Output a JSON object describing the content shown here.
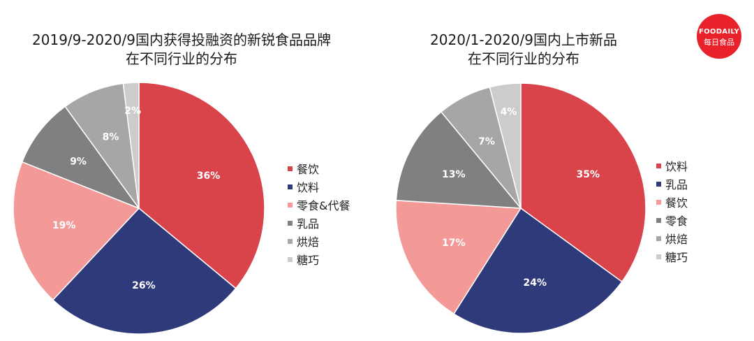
{
  "logo": {
    "brand": "FOODAILY",
    "sub": "每日食品"
  },
  "chart_data": [
    {
      "type": "pie",
      "title_lines": [
        "2019/9-2020/9国内获得投融资的新锐食品品牌",
        "在不同行业的分布"
      ],
      "legend_position": "right",
      "slices": [
        {
          "label": "餐饮",
          "value": 36,
          "display": "36%",
          "color": "#d9434a"
        },
        {
          "label": "饮料",
          "value": 26,
          "display": "26%",
          "color": "#2e3a7a"
        },
        {
          "label": "零食&代餐",
          "value": 19,
          "display": "19%",
          "color": "#f39a98"
        },
        {
          "label": "乳品",
          "value": 9,
          "display": "9%",
          "color": "#808080"
        },
        {
          "label": "烘焙",
          "value": 8,
          "display": "8%",
          "color": "#a6a6a6"
        },
        {
          "label": "糖巧",
          "value": 2,
          "display": "2%",
          "color": "#cccccc"
        }
      ]
    },
    {
      "type": "pie",
      "title_lines": [
        "2020/1-2020/9国内上市新品",
        "在不同行业的分布"
      ],
      "legend_position": "right",
      "slices": [
        {
          "label": "饮料",
          "value": 35,
          "display": "35%",
          "color": "#d9434a"
        },
        {
          "label": "乳品",
          "value": 24,
          "display": "24%",
          "color": "#2e3a7a"
        },
        {
          "label": "餐饮",
          "value": 17,
          "display": "17%",
          "color": "#f39a98"
        },
        {
          "label": "零食",
          "value": 13,
          "display": "13%",
          "color": "#808080"
        },
        {
          "label": "烘焙",
          "value": 7,
          "display": "7%",
          "color": "#a6a6a6"
        },
        {
          "label": "糖巧",
          "value": 4,
          "display": "4%",
          "color": "#cccccc"
        }
      ]
    }
  ]
}
